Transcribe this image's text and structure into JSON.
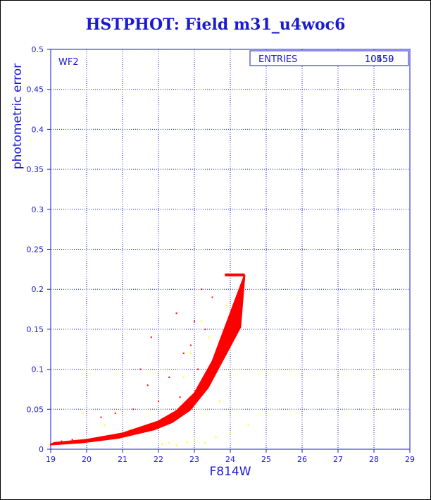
{
  "chart_data": {
    "type": "scatter",
    "title": "HSTPHOT: Field m31_u4woc6",
    "xlabel": "F814W",
    "ylabel": "photometric error",
    "xlim": [
      19,
      29
    ],
    "ylim": [
      0,
      0.5
    ],
    "xticks": [
      "19",
      "20",
      "21",
      "22",
      "23",
      "24",
      "25",
      "26",
      "27",
      "28",
      "29"
    ],
    "yticks": [
      "0",
      "0.05",
      "0.1",
      "0.15",
      "0.2",
      "0.25",
      "0.3",
      "0.35",
      "0.4",
      "0.45",
      "0.5"
    ],
    "grid": true,
    "panel_label": "WF2",
    "stats": {
      "label": "ENTRIES",
      "value_a": "10459",
      "value_b": "10550"
    },
    "series": [
      {
        "color": "#ff0000",
        "note": "main sequence envelope",
        "curve": [
          [
            19.1,
            0.008
          ],
          [
            20,
            0.012
          ],
          [
            21,
            0.02
          ],
          [
            22,
            0.035
          ],
          [
            22.5,
            0.048
          ],
          [
            23,
            0.07
          ],
          [
            23.5,
            0.11
          ],
          [
            24,
            0.17
          ],
          [
            24.4,
            0.218
          ]
        ],
        "scatter": [
          [
            19.3,
            0.01
          ],
          [
            19.6,
            0.012
          ],
          [
            20.4,
            0.04
          ],
          [
            20.8,
            0.045
          ],
          [
            21.3,
            0.05
          ],
          [
            21.5,
            0.1
          ],
          [
            21.7,
            0.08
          ],
          [
            21.8,
            0.14
          ],
          [
            22.0,
            0.06
          ],
          [
            22.3,
            0.09
          ],
          [
            22.5,
            0.17
          ],
          [
            22.7,
            0.12
          ],
          [
            22.9,
            0.13
          ],
          [
            23.0,
            0.16
          ],
          [
            23.2,
            0.2
          ],
          [
            23.3,
            0.15
          ],
          [
            23.5,
            0.19
          ],
          [
            22.1,
            0.03
          ],
          [
            22.6,
            0.065
          ],
          [
            23.1,
            0.1
          ]
        ]
      },
      {
        "color": "#ffff00",
        "note": "faint outliers",
        "scatter": [
          [
            19.9,
            0.045
          ],
          [
            20.5,
            0.03
          ],
          [
            21.2,
            0.025
          ],
          [
            22.1,
            0.006
          ],
          [
            22.3,
            0.008
          ],
          [
            22.5,
            0.005
          ],
          [
            22.8,
            0.009
          ],
          [
            23.0,
            0.012
          ],
          [
            23.3,
            0.008
          ],
          [
            23.6,
            0.015
          ],
          [
            24.0,
            0.02
          ],
          [
            24.5,
            0.03
          ],
          [
            23.2,
            0.16
          ],
          [
            22.9,
            0.12
          ],
          [
            23.7,
            0.06
          ],
          [
            23.4,
            0.14
          ],
          [
            22.7,
            0.09
          ],
          [
            23.9,
            0.18
          ]
        ]
      }
    ]
  }
}
